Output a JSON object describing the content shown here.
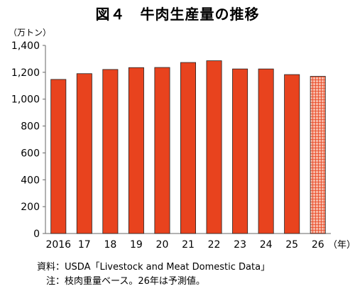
{
  "title": "図４　牛肉生産量の推移",
  "chart_data": {
    "type": "bar",
    "y_unit": "（万トン）",
    "x_unit": "（年）",
    "categories": [
      "2016",
      "17",
      "18",
      "19",
      "20",
      "21",
      "22",
      "23",
      "24",
      "25",
      "26"
    ],
    "values": [
      1147,
      1190,
      1221,
      1235,
      1236,
      1273,
      1286,
      1225,
      1225,
      1183,
      1170
    ],
    "projected": [
      false,
      false,
      false,
      false,
      false,
      false,
      false,
      false,
      false,
      false,
      true
    ],
    "yticks": [
      "0",
      "200",
      "400",
      "600",
      "800",
      "1,000",
      "1,200",
      "1,400"
    ],
    "ylim": [
      0,
      1400
    ],
    "grid": false,
    "colors": {
      "bar": "#e8431e",
      "bar_edge": "#222222",
      "projected_fill": "#f7b8a6",
      "projected_hatch": "#e8431e"
    }
  },
  "notes": {
    "source_label": "資料：",
    "source_text": "USDA「Livestock and Meat Domestic Data」",
    "note_label": "　注：",
    "note_text": "枝肉重量ベース。26年は予測値。"
  }
}
